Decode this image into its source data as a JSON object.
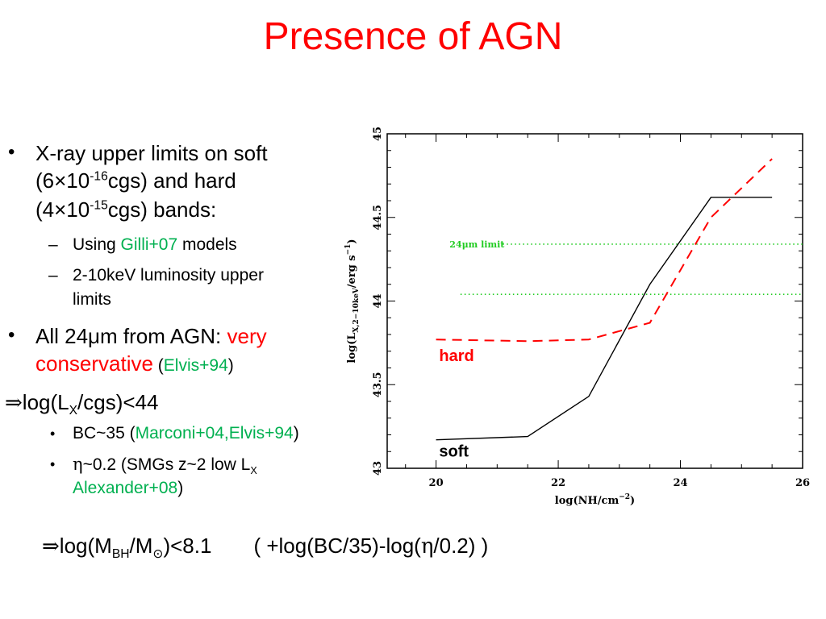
{
  "title": "Presence of AGN",
  "bullets": {
    "b1_line1": "X-ray upper limits on soft",
    "b1_line2_a": "(6×10",
    "b1_line2_sup": "-16",
    "b1_line2_b": "cgs) and hard",
    "b1_line3_a": "(4×10",
    "b1_line3_sup": "-15",
    "b1_line3_b": "cgs) bands:",
    "sub1_a": "Using ",
    "sub1_ref": "Gilli+07",
    "sub1_b": " models",
    "sub2_line1": "2-10keV luminosity upper",
    "sub2_line2": "limits",
    "b2_a": "All 24μm from AGN: ",
    "b2_red1": "very",
    "b2_red2": "conservative",
    "b2_open": " (",
    "b2_ref": "Elvis+94",
    "b2_close": ")",
    "impl1_a": "log(L",
    "impl1_sub": "X",
    "impl1_b": "/cgs)<44",
    "bc_a": "BC~35 (",
    "bc_ref": "Marconi+04,Elvis+94",
    "bc_close": ")",
    "eta_line1_a": "~0.2 (SMGs z~2 low L",
    "eta_sub": "X",
    "eta_ref": "Alexander+08",
    "eta_close": ")",
    "final_a": "log(M",
    "final_sub1": "BH",
    "final_b": "/M",
    "final_sub2": "⊙",
    "final_c": ")<8.1",
    "final_d": "( +log(BC/35)-log(",
    "final_e": "/0.2) )"
  },
  "chart_data": {
    "type": "line",
    "xlabel": "log(NH/cm",
    "xlabel_sup": "−2",
    "xlabel_end": ")",
    "ylabel": "log(L_X,2−10keV/erg s^−1)",
    "xlim": [
      19.2,
      26
    ],
    "ylim": [
      43,
      45
    ],
    "xticks": [
      "20",
      "22",
      "24",
      "26"
    ],
    "yticks": [
      "43",
      "43.5",
      "44",
      "44.5",
      "45"
    ],
    "series": [
      {
        "name": "soft",
        "color": "#000000",
        "style": "solid",
        "x": [
          20,
          21.5,
          22.5,
          23.5,
          24.5,
          25.5
        ],
        "y": [
          43.17,
          43.19,
          43.43,
          44.1,
          44.62,
          44.62
        ]
      },
      {
        "name": "hard",
        "color": "#ff0000",
        "style": "dashed",
        "x": [
          20,
          21.5,
          22.5,
          23.5,
          24.5,
          25.5
        ],
        "y": [
          43.77,
          43.76,
          43.77,
          43.87,
          44.5,
          44.85
        ]
      }
    ],
    "hlines": [
      {
        "label": "24μm limit",
        "y": 44.34,
        "x_start": 20.3,
        "color": "#22cc22"
      },
      {
        "label": "",
        "y": 44.04,
        "x_start": 20.4,
        "color": "#22cc22"
      }
    ]
  }
}
